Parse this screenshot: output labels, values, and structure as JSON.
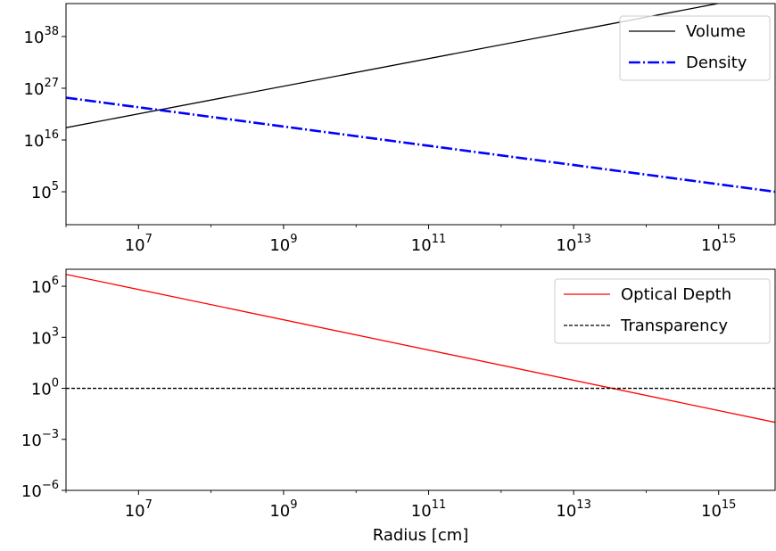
{
  "chart_data": [
    {
      "type": "line",
      "title": "",
      "xlabel": "",
      "ylabel": "",
      "xscale": "log",
      "yscale": "log",
      "xlim": [
        1000000.0,
        6000000000000000.0
      ],
      "ylim": [
        0.01,
        1e+45
      ],
      "xticks": [
        {
          "base": "10",
          "exp": "7",
          "value": 10000000.0
        },
        {
          "base": "10",
          "exp": "9",
          "value": 1000000000.0
        },
        {
          "base": "10",
          "exp": "11",
          "value": 100000000000.0
        },
        {
          "base": "10",
          "exp": "13",
          "value": 10000000000000.0
        },
        {
          "base": "10",
          "exp": "15",
          "value": 1000000000000000.0
        }
      ],
      "yticks": [
        {
          "base": "10",
          "exp": "38",
          "value": 1e+38
        },
        {
          "base": "10",
          "exp": "27",
          "value": 1e+27
        },
        {
          "base": "10",
          "exp": "16",
          "value": 1e+16
        },
        {
          "base": "10",
          "exp": "5",
          "value": 100000.0
        }
      ],
      "legend": "top-right",
      "grid": false,
      "series": [
        {
          "name": "Volume",
          "color": "#000000",
          "style": "solid",
          "x": [
            1000000.0,
            6000000000000000.0
          ],
          "y": [
            4.2e+18,
            2.1e+47
          ]
        },
        {
          "name": "Density",
          "color": "#0000ff",
          "style": "dashdot",
          "x": [
            1000000.0,
            6000000000000000.0
          ],
          "y": [
            1e+25,
            100000.0
          ]
        }
      ]
    },
    {
      "type": "line",
      "title": "",
      "xlabel": "Radius [cm]",
      "ylabel": "",
      "xscale": "log",
      "yscale": "log",
      "xlim": [
        1000000.0,
        6000000000000000.0
      ],
      "ylim": [
        1e-06,
        10000000.0
      ],
      "xticks": [
        {
          "base": "10",
          "exp": "7",
          "value": 10000000.0
        },
        {
          "base": "10",
          "exp": "9",
          "value": 1000000000.0
        },
        {
          "base": "10",
          "exp": "11",
          "value": 100000000000.0
        },
        {
          "base": "10",
          "exp": "13",
          "value": 10000000000000.0
        },
        {
          "base": "10",
          "exp": "15",
          "value": 1000000000000000.0
        }
      ],
      "yticks": [
        {
          "base": "10",
          "exp": "6",
          "value": 1000000.0
        },
        {
          "base": "10",
          "exp": "3",
          "value": 1000.0
        },
        {
          "base": "10",
          "exp": "0",
          "value": 1.0
        },
        {
          "base": "10",
          "exp": "−3",
          "value": 0.001
        },
        {
          "base": "10",
          "exp": "−6",
          "value": 1e-06
        }
      ],
      "legend": "top-right",
      "grid": false,
      "series": [
        {
          "name": "Optical Depth",
          "color": "#ff0000",
          "style": "solid",
          "x": [
            1000000.0,
            6000000000000000.0
          ],
          "y": [
            5000000.0,
            0.01
          ]
        },
        {
          "name": "Transparency",
          "color": "#000000",
          "style": "dashed",
          "x": [
            1000000.0,
            6000000000000000.0
          ],
          "y": [
            1,
            1
          ]
        }
      ]
    }
  ]
}
